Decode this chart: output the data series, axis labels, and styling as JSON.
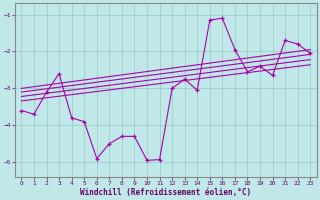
{
  "xlabel": "Windchill (Refroidissement éolien,°C)",
  "bg_color": "#c0e8e8",
  "grid_color": "#a0cccc",
  "line_color": "#aa00aa",
  "xlim": [
    -0.5,
    23.5
  ],
  "ylim": [
    -5.4,
    -0.7
  ],
  "yticks": [
    -5,
    -4,
    -3,
    -2,
    -1
  ],
  "xticks": [
    0,
    1,
    2,
    3,
    4,
    5,
    6,
    7,
    8,
    9,
    10,
    11,
    12,
    13,
    14,
    15,
    16,
    17,
    18,
    19,
    20,
    21,
    22,
    23
  ],
  "main_x": [
    0,
    1,
    2,
    3,
    4,
    5,
    6,
    7,
    8,
    9,
    10,
    11,
    12,
    13,
    14,
    15,
    16,
    17,
    18,
    19,
    20,
    21,
    22,
    23
  ],
  "main_y": [
    -3.6,
    -3.7,
    -3.1,
    -2.6,
    -3.8,
    -3.9,
    -4.9,
    -4.5,
    -4.3,
    -4.3,
    -4.95,
    -4.93,
    -3.0,
    -2.75,
    -3.05,
    -1.15,
    -1.1,
    -1.95,
    -2.55,
    -2.4,
    -2.65,
    -1.7,
    -1.8,
    -2.05
  ],
  "smooth_lines": [
    {
      "x": [
        0,
        23
      ],
      "y": [
        -3.0,
        -1.95
      ]
    },
    {
      "x": [
        0,
        23
      ],
      "y": [
        -3.1,
        -2.08
      ]
    },
    {
      "x": [
        0,
        23
      ],
      "y": [
        -3.22,
        -2.22
      ]
    },
    {
      "x": [
        0,
        23
      ],
      "y": [
        -3.34,
        -2.36
      ]
    }
  ]
}
